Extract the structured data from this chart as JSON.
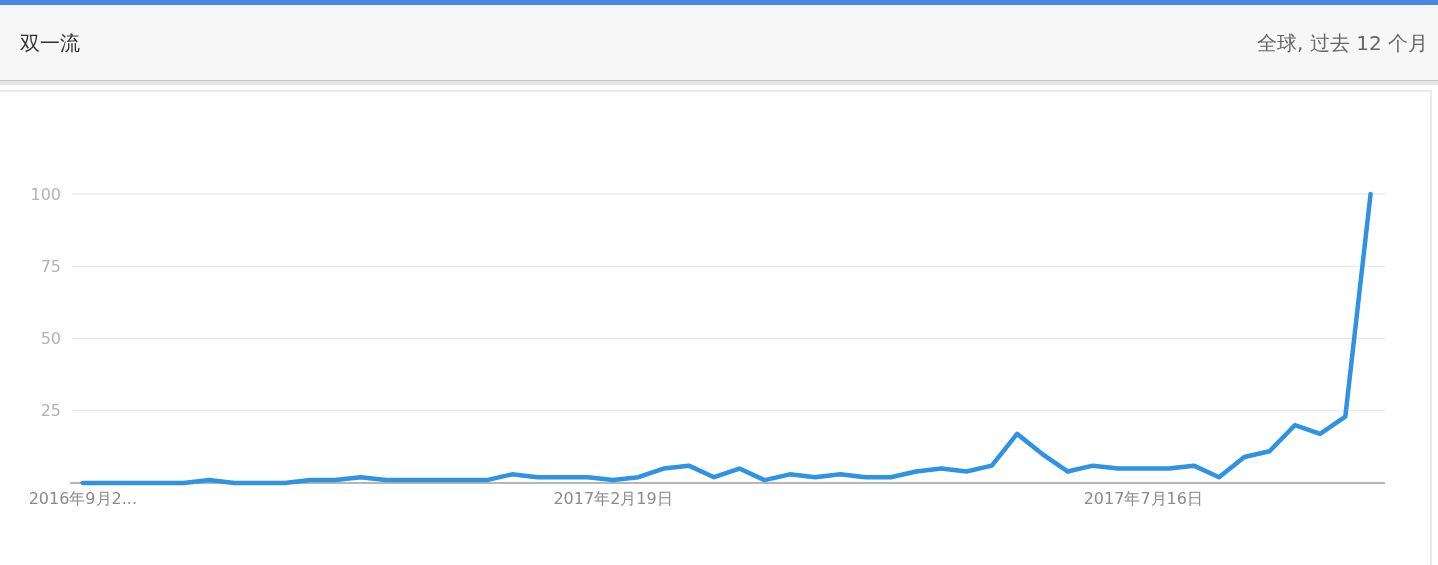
{
  "chart_data": {
    "type": "line",
    "title": "双一流",
    "subtitle": "全球, 过去 12 个月",
    "x": [
      "2016-09-25",
      "2016-10-02",
      "2016-10-09",
      "2016-10-16",
      "2016-10-23",
      "2016-10-30",
      "2016-11-06",
      "2016-11-13",
      "2016-11-20",
      "2016-11-27",
      "2016-12-04",
      "2016-12-11",
      "2016-12-18",
      "2016-12-25",
      "2017-01-01",
      "2017-01-08",
      "2017-01-15",
      "2017-01-22",
      "2017-01-29",
      "2017-02-05",
      "2017-02-12",
      "2017-02-19",
      "2017-02-26",
      "2017-03-05",
      "2017-03-12",
      "2017-03-19",
      "2017-03-26",
      "2017-04-02",
      "2017-04-09",
      "2017-04-16",
      "2017-04-23",
      "2017-04-30",
      "2017-05-07",
      "2017-05-14",
      "2017-05-21",
      "2017-05-28",
      "2017-06-04",
      "2017-06-11",
      "2017-06-18",
      "2017-06-25",
      "2017-07-02",
      "2017-07-09",
      "2017-07-16",
      "2017-07-23",
      "2017-07-30",
      "2017-08-06",
      "2017-08-13",
      "2017-08-20",
      "2017-08-27",
      "2017-09-03",
      "2017-09-10",
      "2017-09-17"
    ],
    "series": [
      {
        "color": "#2e93e3",
        "values": [
          0,
          0,
          0,
          0,
          0,
          1,
          0,
          0,
          0,
          1,
          1,
          2,
          1,
          1,
          1,
          1,
          1,
          3,
          2,
          2,
          2,
          1,
          2,
          5,
          6,
          2,
          5,
          1,
          3,
          2,
          3,
          2,
          2,
          4,
          5,
          4,
          6,
          17,
          10,
          4,
          6,
          5,
          5,
          5,
          6,
          2,
          9,
          11,
          20,
          17,
          23,
          100
        ]
      }
    ],
    "xlim": [
      "2016-09-22",
      "2017-09-21"
    ],
    "xticks": [
      {
        "value": "2016-09-25",
        "label": "2016年9月2..."
      },
      {
        "value": "2017-02-19",
        "label": "2017年2月19日"
      },
      {
        "value": "2017-07-16",
        "label": "2017年7月16日"
      }
    ],
    "ylim": [
      0,
      100
    ],
    "yticks": [
      25,
      50,
      75,
      100
    ],
    "grid": "y"
  }
}
